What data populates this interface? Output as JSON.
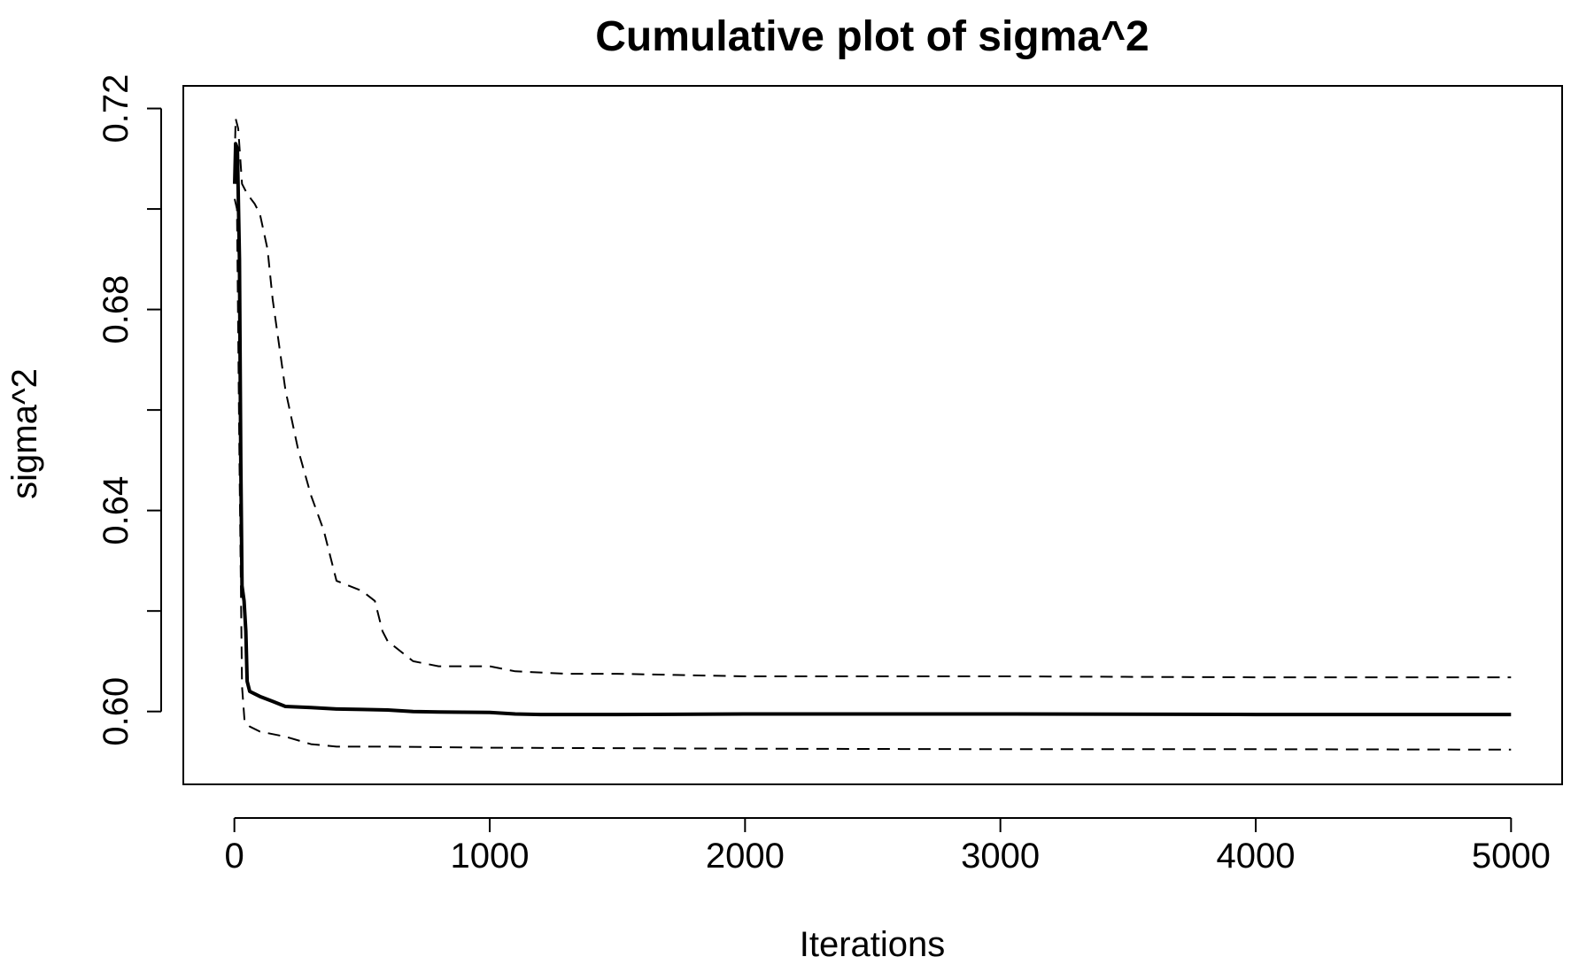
{
  "chart_data": {
    "type": "line",
    "title": "Cumulative plot of sigma^2",
    "xlabel": "Iterations",
    "ylabel": "sigma^2",
    "xlim": [
      -200,
      5200
    ],
    "ylim": [
      0.5855,
      0.7245
    ],
    "x_ticks": [
      0,
      1000,
      2000,
      3000,
      4000,
      5000
    ],
    "x_tick_labels": [
      "0",
      "1000",
      "2000",
      "3000",
      "4000",
      "5000"
    ],
    "y_ticks": [
      0.6,
      0.62,
      0.64,
      0.66,
      0.68,
      0.7,
      0.72
    ],
    "y_tick_labels": [
      "0.60",
      "",
      "0.64",
      "",
      "0.68",
      "",
      "0.72"
    ],
    "grid": false,
    "legend": "none",
    "series": [
      {
        "style": "solid",
        "points": [
          [
            1,
            0.705
          ],
          [
            5,
            0.713
          ],
          [
            12,
            0.712
          ],
          [
            20,
            0.69
          ],
          [
            25,
            0.65
          ],
          [
            30,
            0.625
          ],
          [
            38,
            0.622
          ],
          [
            45,
            0.616
          ],
          [
            50,
            0.606
          ],
          [
            60,
            0.604
          ],
          [
            80,
            0.6035
          ],
          [
            100,
            0.603
          ],
          [
            150,
            0.602
          ],
          [
            200,
            0.601
          ],
          [
            300,
            0.6008
          ],
          [
            400,
            0.6005
          ],
          [
            500,
            0.6004
          ],
          [
            600,
            0.6003
          ],
          [
            700,
            0.6
          ],
          [
            800,
            0.5999
          ],
          [
            1000,
            0.5998
          ],
          [
            1100,
            0.5995
          ],
          [
            1200,
            0.5994
          ],
          [
            1500,
            0.5994
          ],
          [
            2000,
            0.5995
          ],
          [
            3000,
            0.5995
          ],
          [
            4000,
            0.5994
          ],
          [
            5000,
            0.5994
          ]
        ]
      },
      {
        "style": "dashed",
        "points": [
          [
            1,
            0.71
          ],
          [
            5,
            0.718
          ],
          [
            15,
            0.716
          ],
          [
            30,
            0.705
          ],
          [
            50,
            0.703
          ],
          [
            80,
            0.701
          ],
          [
            100,
            0.699
          ],
          [
            130,
            0.692
          ],
          [
            150,
            0.682
          ],
          [
            200,
            0.664
          ],
          [
            250,
            0.652
          ],
          [
            300,
            0.643
          ],
          [
            350,
            0.636
          ],
          [
            400,
            0.626
          ],
          [
            450,
            0.625
          ],
          [
            500,
            0.624
          ],
          [
            550,
            0.622
          ],
          [
            580,
            0.616
          ],
          [
            600,
            0.614
          ],
          [
            700,
            0.61
          ],
          [
            800,
            0.609
          ],
          [
            1000,
            0.609
          ],
          [
            1100,
            0.608
          ],
          [
            1300,
            0.6075
          ],
          [
            1500,
            0.6075
          ],
          [
            2000,
            0.607
          ],
          [
            3000,
            0.607
          ],
          [
            4000,
            0.6068
          ],
          [
            5000,
            0.6068
          ]
        ]
      },
      {
        "style": "dashed",
        "points": [
          [
            1,
            0.702
          ],
          [
            10,
            0.7
          ],
          [
            20,
            0.65
          ],
          [
            30,
            0.605
          ],
          [
            40,
            0.598
          ],
          [
            60,
            0.597
          ],
          [
            100,
            0.596
          ],
          [
            200,
            0.595
          ],
          [
            300,
            0.5935
          ],
          [
            400,
            0.593
          ],
          [
            600,
            0.593
          ],
          [
            1000,
            0.5928
          ],
          [
            2000,
            0.5926
          ],
          [
            3000,
            0.5925
          ],
          [
            4000,
            0.5925
          ],
          [
            5000,
            0.5924
          ]
        ]
      }
    ]
  }
}
